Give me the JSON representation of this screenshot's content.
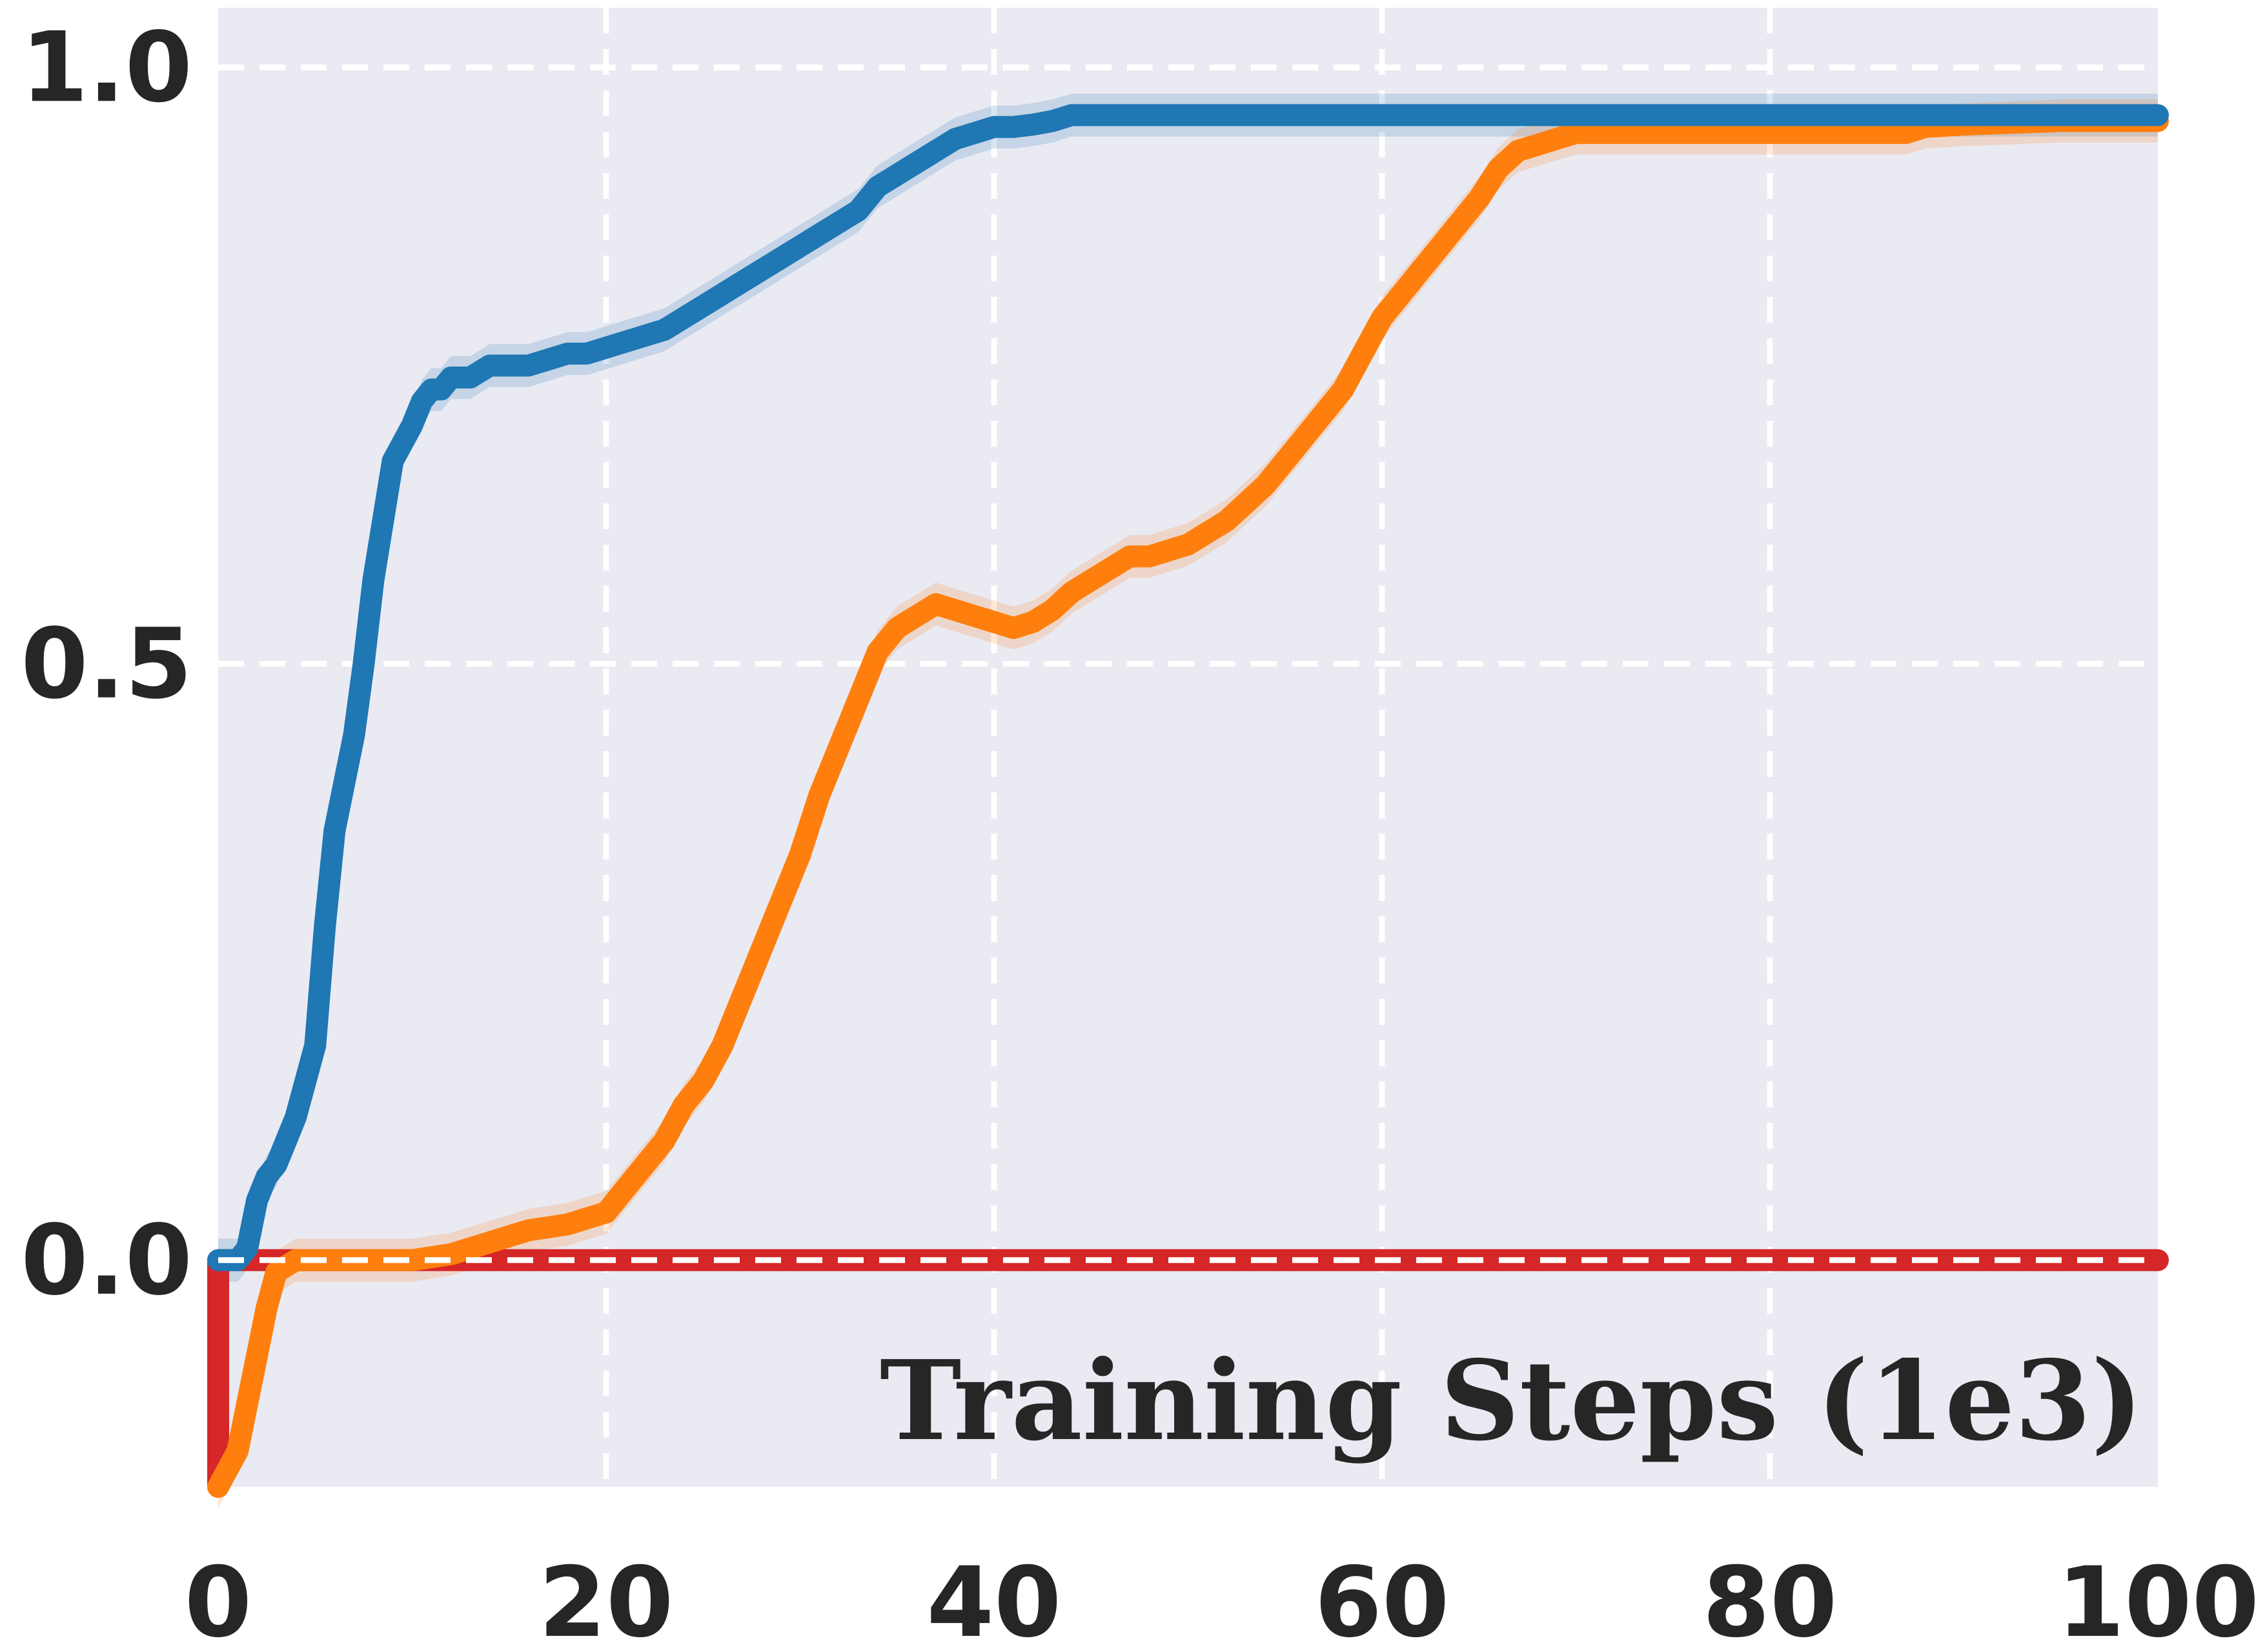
{
  "chart_data": {
    "type": "line",
    "title": "",
    "xlabel": "Training Steps (1e3)",
    "ylabel": "",
    "xlim": [
      0,
      100
    ],
    "ylim": [
      -0.19,
      1.05
    ],
    "xticks": [
      0,
      20,
      40,
      60,
      80,
      100
    ],
    "xtick_labels": [
      "0",
      "20",
      "40",
      "60",
      "80",
      "100"
    ],
    "yticks": [
      0.0,
      0.5,
      1.0
    ],
    "ytick_labels": [
      "0.0",
      "0.5",
      "1.0"
    ],
    "grid": true,
    "legend": "none",
    "background_color": "#EAEAF2",
    "grid_color": "#FFFFFF",
    "xlabel_position": "inside-bottom-right",
    "series": [
      {
        "color": "#1F77B4",
        "x": [
          0,
          1,
          1.5,
          2,
          2.5,
          3,
          3.5,
          4,
          5,
          5.5,
          6,
          7,
          7.5,
          8,
          8.5,
          9,
          10,
          10.5,
          11,
          11.5,
          12,
          12.5,
          13,
          14,
          15,
          16,
          17,
          18,
          19,
          20,
          21,
          22,
          23,
          24,
          25,
          26,
          27,
          28,
          29,
          30,
          31,
          32,
          33,
          34,
          35,
          36,
          37,
          38,
          39,
          40,
          41,
          42,
          43,
          44,
          46,
          48,
          50,
          55,
          60,
          70,
          80,
          90,
          100
        ],
        "y": [
          0.0,
          0.0,
          0.01,
          0.05,
          0.07,
          0.08,
          0.1,
          0.12,
          0.18,
          0.28,
          0.36,
          0.44,
          0.5,
          0.57,
          0.62,
          0.67,
          0.7,
          0.72,
          0.73,
          0.73,
          0.74,
          0.74,
          0.74,
          0.75,
          0.75,
          0.75,
          0.755,
          0.76,
          0.76,
          0.765,
          0.77,
          0.775,
          0.78,
          0.79,
          0.8,
          0.81,
          0.82,
          0.83,
          0.84,
          0.85,
          0.86,
          0.87,
          0.88,
          0.9,
          0.91,
          0.92,
          0.93,
          0.94,
          0.945,
          0.95,
          0.95,
          0.952,
          0.955,
          0.96,
          0.96,
          0.96,
          0.96,
          0.96,
          0.96,
          0.96,
          0.96,
          0.96,
          0.96
        ]
      },
      {
        "color": "#FF7F0E",
        "x": [
          0,
          1,
          1.5,
          2,
          2.5,
          3,
          4,
          6,
          8,
          10,
          12,
          14,
          15,
          16,
          18,
          20,
          21,
          22,
          23,
          24,
          25,
          26,
          27,
          28,
          29,
          30,
          31,
          32,
          33,
          34,
          35,
          36,
          37,
          38,
          39,
          40,
          41,
          42,
          43,
          44,
          45,
          46,
          47,
          48,
          49,
          50,
          51,
          52,
          53,
          54,
          55,
          56,
          57,
          58,
          59,
          60,
          61,
          62,
          63,
          64,
          65,
          66,
          67,
          68,
          69,
          70,
          72,
          75,
          80,
          85,
          87,
          88,
          90,
          95,
          100
        ],
        "y": [
          -0.19,
          -0.16,
          -0.12,
          -0.08,
          -0.04,
          -0.01,
          0.0,
          0.0,
          0.0,
          0.0,
          0.005,
          0.015,
          0.02,
          0.025,
          0.03,
          0.04,
          0.06,
          0.08,
          0.1,
          0.13,
          0.15,
          0.18,
          0.22,
          0.26,
          0.3,
          0.34,
          0.39,
          0.43,
          0.47,
          0.51,
          0.53,
          0.54,
          0.55,
          0.545,
          0.54,
          0.535,
          0.53,
          0.535,
          0.545,
          0.56,
          0.57,
          0.58,
          0.59,
          0.59,
          0.595,
          0.6,
          0.61,
          0.62,
          0.635,
          0.65,
          0.67,
          0.69,
          0.71,
          0.73,
          0.76,
          0.79,
          0.81,
          0.83,
          0.85,
          0.87,
          0.89,
          0.915,
          0.93,
          0.935,
          0.94,
          0.945,
          0.945,
          0.945,
          0.945,
          0.945,
          0.945,
          0.95,
          0.952,
          0.955,
          0.955
        ]
      },
      {
        "color": "#D62728",
        "x": [
          0,
          0,
          100
        ],
        "y": [
          -0.19,
          0.0,
          0.0
        ]
      }
    ]
  }
}
